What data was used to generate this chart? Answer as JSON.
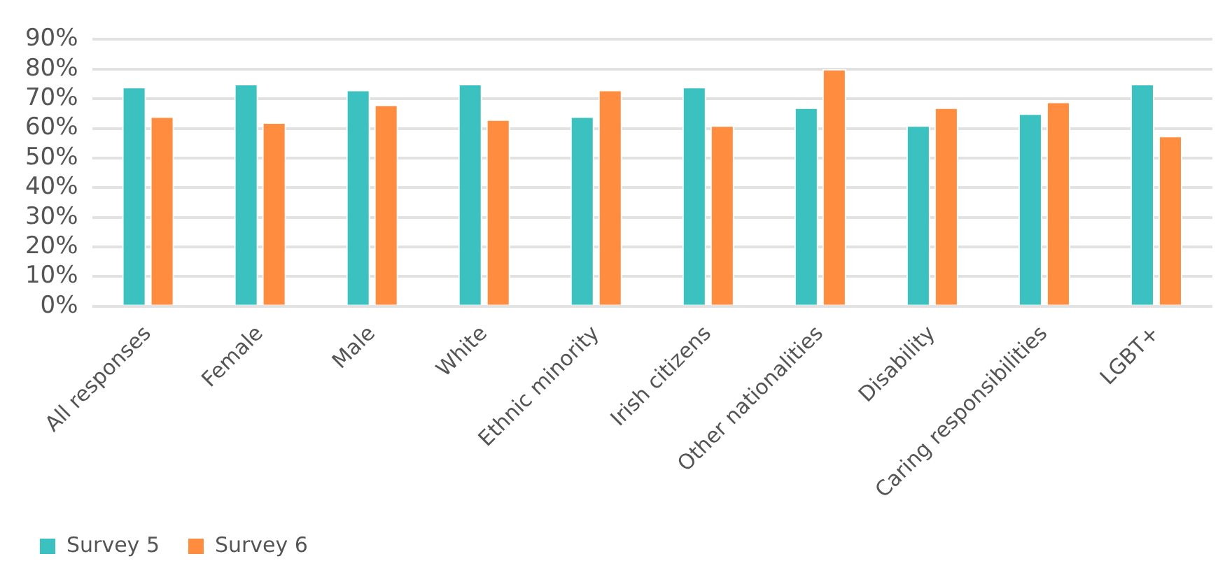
{
  "chart_data": {
    "type": "bar",
    "categories": [
      "All responses",
      "Female",
      "Male",
      "White",
      "Ethnic minority",
      "Irish citizens",
      "Other nationalities",
      "Disability",
      "Caring responsibilities",
      "LGBT+"
    ],
    "series": [
      {
        "name": "Survey 5",
        "color": "#3bc1c0",
        "values": [
          74,
          75,
          73,
          75,
          64,
          74,
          67,
          61,
          65,
          75
        ]
      },
      {
        "name": "Survey 6",
        "color": "#ff8c3f",
        "values": [
          64,
          62,
          68,
          63,
          73,
          61,
          80,
          67,
          69,
          57.5
        ]
      }
    ],
    "ylim": [
      0,
      90
    ],
    "yticks": [
      {
        "value": 0,
        "label": "0%"
      },
      {
        "value": 10,
        "label": "10%"
      },
      {
        "value": 20,
        "label": "20%"
      },
      {
        "value": 30,
        "label": "30%"
      },
      {
        "value": 40,
        "label": "40%"
      },
      {
        "value": 50,
        "label": "50%"
      },
      {
        "value": 60,
        "label": "60%"
      },
      {
        "value": 70,
        "label": "70%"
      },
      {
        "value": 80,
        "label": "80%"
      },
      {
        "value": 90,
        "label": "90%"
      }
    ],
    "grid": "y",
    "legend": "bottom left"
  }
}
